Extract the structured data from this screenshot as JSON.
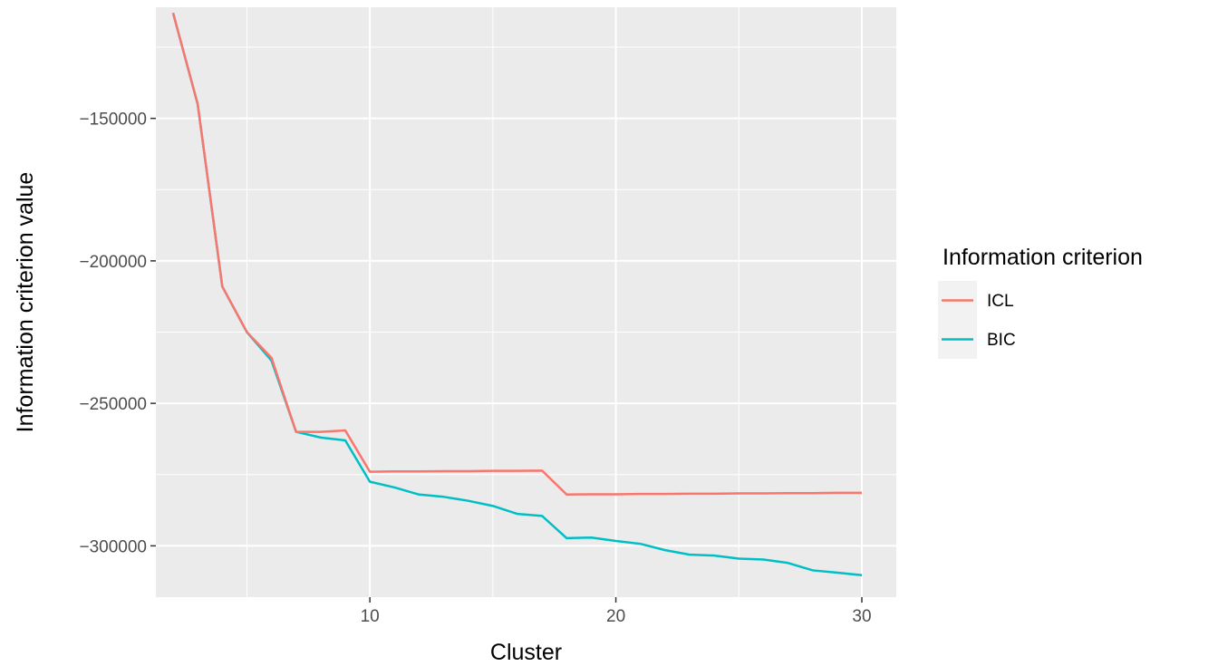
{
  "chart_data": {
    "type": "line",
    "title": "",
    "xlabel": "Cluster",
    "ylabel": "Information criterion value",
    "xlim": [
      1.3,
      31.4
    ],
    "ylim": [
      -318000,
      -111000
    ],
    "x_ticks": [
      10,
      20,
      30
    ],
    "x_tick_labels": [
      "10",
      "20",
      "30"
    ],
    "x_minor_ticks": [
      5,
      15,
      25
    ],
    "y_ticks": [
      -150000,
      -200000,
      -250000,
      -300000
    ],
    "y_tick_labels": [
      "−150000",
      "−200000",
      "−250000",
      "−300000"
    ],
    "y_minor_ticks": [
      -125000,
      -175000,
      -225000,
      -275000
    ],
    "grid": true,
    "background": "#ebebeb",
    "legend": {
      "title": "Information criterion",
      "position": "right",
      "entries": [
        {
          "label": "ICL",
          "color": "#f8766d"
        },
        {
          "label": "BIC",
          "color": "#00bfc4"
        }
      ]
    },
    "x": [
      2,
      3,
      4,
      5,
      6,
      7,
      8,
      9,
      10,
      11,
      12,
      13,
      14,
      15,
      16,
      17,
      18,
      19,
      20,
      21,
      22,
      23,
      24,
      25,
      26,
      27,
      28,
      29,
      30
    ],
    "series": [
      {
        "name": "ICL",
        "color": "#f8766d",
        "values": [
          -113000,
          -145000,
          -209000,
          -225000,
          -234000,
          -260000,
          -260000,
          -259500,
          -274000,
          -273900,
          -273900,
          -273800,
          -273800,
          -273700,
          -273700,
          -273600,
          -282000,
          -281900,
          -281900,
          -281800,
          -281800,
          -281700,
          -281700,
          -281600,
          -281600,
          -281500,
          -281500,
          -281400,
          -281400
        ]
      },
      {
        "name": "BIC",
        "color": "#00bfc4",
        "values": [
          -113000,
          -145000,
          -209000,
          -225000,
          -235000,
          -260000,
          -262000,
          -263000,
          -277500,
          -279500,
          -282000,
          -282800,
          -284200,
          -286000,
          -288800,
          -289500,
          -297300,
          -297100,
          -298300,
          -299300,
          -301500,
          -303100,
          -303400,
          -304500,
          -304800,
          -306000,
          -308600,
          -309400,
          -310300
        ]
      }
    ]
  }
}
